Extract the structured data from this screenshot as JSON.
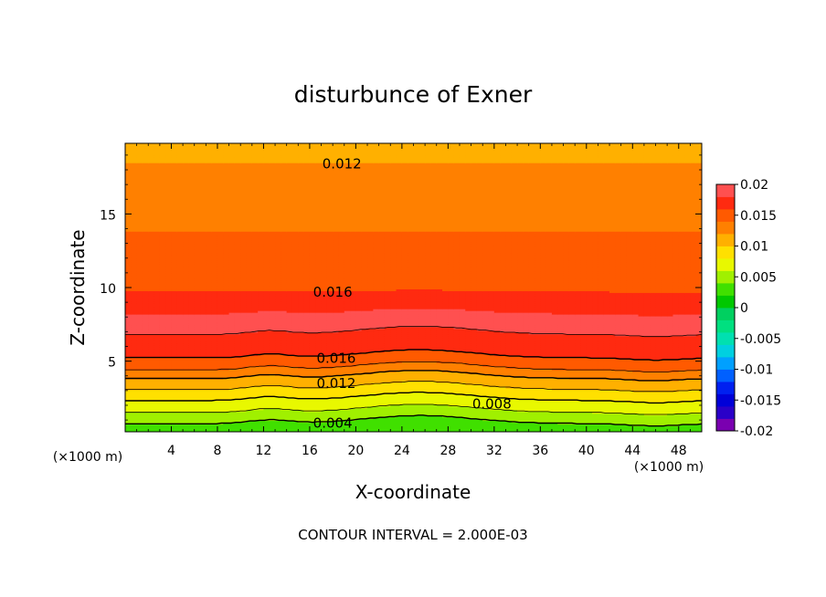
{
  "chart_data": {
    "type": "contour",
    "title": "disturbunce of Exner",
    "xlabel": "X-coordinate",
    "ylabel": "Z-coordinate",
    "x_unit": "(×1000 m)",
    "y_unit": "(×1000 m)",
    "xlim": [
      0,
      50
    ],
    "ylim": [
      0.2,
      19.8
    ],
    "x_ticks": [
      4,
      8,
      12,
      16,
      20,
      24,
      28,
      32,
      36,
      40,
      44,
      48
    ],
    "x_tick_labels": [
      "4",
      "8",
      "12",
      "16",
      "20",
      "24",
      "28",
      "32",
      "36",
      "40",
      "44",
      "48"
    ],
    "y_ticks": [
      5,
      10,
      15
    ],
    "y_tick_labels": [
      "5",
      "10",
      "15"
    ],
    "levels": [
      -0.02,
      -0.018,
      -0.016,
      -0.014,
      -0.012,
      -0.01,
      -0.008,
      -0.006,
      -0.004,
      -0.002,
      0,
      0.002,
      0.004,
      0.006,
      0.008,
      0.01,
      0.012,
      0.014,
      0.016,
      0.018,
      0.02
    ],
    "level_colors": [
      "#7a00b0",
      "#2a00c8",
      "#0000d8",
      "#0020f0",
      "#0060ff",
      "#00a0ff",
      "#00d0e0",
      "#00e0b0",
      "#00e080",
      "#00d060",
      "#00c800",
      "#40e000",
      "#a0f000",
      "#e8f800",
      "#ffe000",
      "#ffb000",
      "#ff8000",
      "#ff5a00",
      "#ff2a10",
      "#ff5050",
      "#ff8080"
    ],
    "colorbar_labels": [
      "0.02",
      "0.015",
      "0.01",
      "0.005",
      "0",
      "-0.005",
      "-0.01",
      "-0.015",
      "-0.02"
    ],
    "colorbar_values": [
      0.02,
      0.015,
      0.01,
      0.005,
      0,
      -0.005,
      -0.01,
      -0.015,
      -0.02
    ],
    "profile": {
      "z": [
        0.2,
        0.8,
        1.3,
        1.8,
        2.3,
        2.8,
        3.3,
        3.8,
        4.4,
        5.2,
        6.0,
        7.0,
        7.8,
        8.6,
        9.7,
        11.0,
        12.5,
        13.8,
        14.8,
        16.5,
        18.4,
        19.8
      ],
      "value": [
        0.0025,
        0.0042,
        0.0055,
        0.0068,
        0.008,
        0.0093,
        0.0107,
        0.012,
        0.014,
        0.016,
        0.0172,
        0.0182,
        0.0182,
        0.0178,
        0.016,
        0.0152,
        0.0148,
        0.014,
        0.0135,
        0.0128,
        0.012,
        0.011
      ]
    },
    "contour_labels": [
      {
        "text": "0.012",
        "x": 18.8,
        "z": 18.4
      },
      {
        "text": "0.016",
        "x": 18.0,
        "z": 9.7
      },
      {
        "text": "0.016",
        "x": 18.3,
        "z": 5.2
      },
      {
        "text": "0.012",
        "x": 18.3,
        "z": 3.5
      },
      {
        "text": "0.008",
        "x": 31.8,
        "z": 2.1
      },
      {
        "text": "0.004",
        "x": 18.0,
        "z": 0.8
      }
    ],
    "footer": "CONTOUR INTERVAL = 2.000E-03"
  }
}
